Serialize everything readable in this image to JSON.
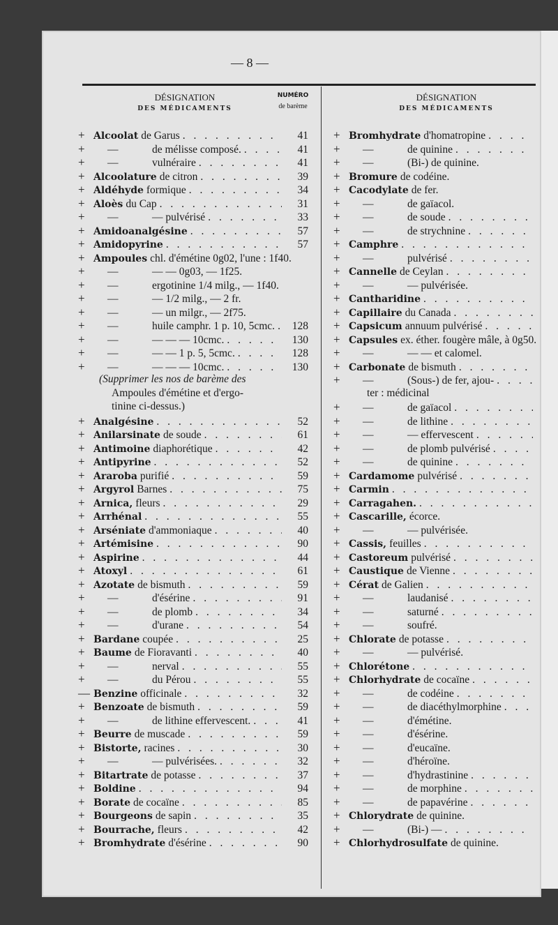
{
  "page_number": "— 8 —",
  "header": {
    "designation": "DÉSIGNATION",
    "des_medicaments": "DES MÉDICAMENTS",
    "numero": "NUMÉRO",
    "de_bareme": "de barème"
  },
  "left": [
    {
      "s": "+",
      "b": "Alcoolat",
      "t": "de Garus",
      "n": "41"
    },
    {
      "s": "+",
      "d": "—",
      "t": "de mélisse composé.",
      "n": "41"
    },
    {
      "s": "+",
      "d": "—",
      "t": "vulnéraire",
      "n": "41"
    },
    {
      "s": "+",
      "b": "Alcoolature",
      "t": "de citron",
      "n": "39"
    },
    {
      "s": "+",
      "b": "Aldéhyde",
      "t": "formique",
      "n": "34"
    },
    {
      "s": "+",
      "b": "Aloès",
      "t": "du Cap",
      "n": "31"
    },
    {
      "s": "+",
      "d": "—",
      "t": "— pulvérisé",
      "n": "33"
    },
    {
      "s": "+",
      "b": "Amidoanalgésine",
      "t": "",
      "n": "57"
    },
    {
      "s": "+",
      "b": "Amidopyrine",
      "t": "",
      "n": "57"
    },
    {
      "s": "+",
      "b": "Ampoules",
      "t": "chl. d'émétine 0g02, l'une : 1f40.",
      "n": ""
    },
    {
      "s": "+",
      "d": "—",
      "t": "— — 0g03, — 1f25.",
      "n": ""
    },
    {
      "s": "+",
      "d": "—",
      "t": "ergotinine 1/4 milg., — 1f40.",
      "n": ""
    },
    {
      "s": "+",
      "d": "—",
      "t": "— 1/2 milg., — 2 fr.",
      "n": ""
    },
    {
      "s": "+",
      "d": "—",
      "t": "— un milgr., — 2f75.",
      "n": ""
    },
    {
      "s": "+",
      "d": "—",
      "t": "huile camphr. 1 p. 10, 5cmc.",
      "n": "128"
    },
    {
      "s": "+",
      "d": "—",
      "t": "— — — 10cmc.",
      "n": "130"
    },
    {
      "s": "+",
      "d": "—",
      "t": "— — 1 p. 5, 5cmc.",
      "n": "128"
    },
    {
      "s": "+",
      "d": "—",
      "t": "— — — 10cmc.",
      "n": "130"
    },
    {
      "note": "(Supprimer les nos de barème des"
    },
    {
      "nt": "Ampoules d'émétine et d'ergo-"
    },
    {
      "nt": "tinine ci-dessus.)"
    },
    {
      "s": "+",
      "b": "Analgésine",
      "t": "",
      "n": "52"
    },
    {
      "s": "+",
      "b": "Anilarsinate",
      "t": "de soude",
      "n": "61"
    },
    {
      "s": "+",
      "b": "Antimoine",
      "t": "diaphorétique",
      "n": "42"
    },
    {
      "s": "+",
      "b": "Antipyrine",
      "t": "",
      "n": "52"
    },
    {
      "s": "+",
      "b": "Araroba",
      "t": "purifié",
      "n": "59"
    },
    {
      "s": "+",
      "b": "Argyrol",
      "t": "Barnes",
      "n": "75"
    },
    {
      "s": "+",
      "b": "Arnica,",
      "t": "fleurs",
      "n": "29"
    },
    {
      "s": "+",
      "b": "Arrhénal",
      "t": "",
      "n": "55"
    },
    {
      "s": "+",
      "b": "Arséniate",
      "t": "d'ammoniaque",
      "n": "40"
    },
    {
      "s": "+",
      "b": "Artémisine",
      "t": "",
      "n": "90"
    },
    {
      "s": "+",
      "b": "Aspirine",
      "t": "",
      "n": "44"
    },
    {
      "s": "+",
      "b": "Atoxyl",
      "t": "",
      "n": "61"
    },
    {
      "s": "+",
      "b": "Azotate",
      "t": "de bismuth",
      "n": "59"
    },
    {
      "s": "+",
      "d": "—",
      "t": "d'ésérine",
      "n": "91"
    },
    {
      "s": "+",
      "d": "—",
      "t": "de plomb",
      "n": "34"
    },
    {
      "s": "+",
      "d": "—",
      "t": "d'urane",
      "n": "54"
    },
    {
      "s": "+",
      "b": "Bardane",
      "t": "coupée",
      "n": "25"
    },
    {
      "s": "+",
      "b": "Baume",
      "t": "de Fioravanti",
      "n": "40"
    },
    {
      "s": "+",
      "d": "—",
      "t": "nerval",
      "n": "55"
    },
    {
      "s": "+",
      "d": "—",
      "t": "du Pérou",
      "n": "55"
    },
    {
      "s": "—",
      "b": "Benzine",
      "t": "officinale",
      "n": "32"
    },
    {
      "s": "+",
      "b": "Benzoate",
      "t": "de bismuth",
      "n": "59"
    },
    {
      "s": "+",
      "d": "—",
      "t": "de lithine effervescent.",
      "n": "41"
    },
    {
      "s": "+",
      "b": "Beurre",
      "t": "de muscade",
      "n": "59"
    },
    {
      "s": "+",
      "b": "Bistorte,",
      "t": "racines",
      "n": "30"
    },
    {
      "s": "+",
      "d": "—",
      "t": "— pulvérisées.",
      "n": "32"
    },
    {
      "s": "+",
      "b": "Bitartrate",
      "t": "de potasse",
      "n": "37"
    },
    {
      "s": "+",
      "b": "Boldine",
      "t": "",
      "n": "94"
    },
    {
      "s": "+",
      "b": "Borate",
      "t": "de cocaïne",
      "n": "85"
    },
    {
      "s": "+",
      "b": "Bourgeons",
      "t": "de sapin",
      "n": "35"
    },
    {
      "s": "+",
      "b": "Bourrache,",
      "t": "fleurs",
      "n": "42"
    },
    {
      "s": "+",
      "b": "Bromhydrate",
      "t": "d'ésérine",
      "n": "90"
    }
  ],
  "right": [
    {
      "s": "+",
      "b": "Bromhydrate",
      "t": "d'homatropine"
    },
    {
      "s": "+",
      "d": "—",
      "t": "de quinine"
    },
    {
      "s": "+",
      "d": "—",
      "t": "(Bi-) de quinine."
    },
    {
      "s": "+",
      "b": "Bromure",
      "t": "de codéine."
    },
    {
      "s": "+",
      "b": "Cacodylate",
      "t": "de fer."
    },
    {
      "s": "+",
      "d": "—",
      "t": "de gaïacol."
    },
    {
      "s": "+",
      "d": "—",
      "t": "de soude"
    },
    {
      "s": "+",
      "d": "—",
      "t": "de strychnine"
    },
    {
      "s": "+",
      "b": "Camphre",
      "t": ""
    },
    {
      "s": "+",
      "d": "—",
      "t": "pulvérisé"
    },
    {
      "s": "+",
      "b": "Cannelle",
      "t": "de Ceylan"
    },
    {
      "s": "+",
      "d": "—",
      "t": "— pulvérisée."
    },
    {
      "s": "+",
      "b": "Cantharidine",
      "t": ""
    },
    {
      "s": "+",
      "b": "Capillaire",
      "t": "du Canada"
    },
    {
      "s": "+",
      "b": "Capsicum",
      "t": "annuum pulvérisé"
    },
    {
      "s": "+",
      "b": "Capsules",
      "t": "ex. éther. fougère mâle, à 0g50."
    },
    {
      "s": "+",
      "d": "—",
      "t": "— — et calomel."
    },
    {
      "s": "+",
      "b": "Carbonate",
      "t": "de bismuth"
    },
    {
      "s": "+",
      "d": "—",
      "t": "(Sous-) de fer, ajou-"
    },
    {
      "nt": "ter : médicinal"
    },
    {
      "s": "+",
      "d": "—",
      "t": "de gaïacol"
    },
    {
      "s": "+",
      "d": "—",
      "t": "de lithine"
    },
    {
      "s": "+",
      "d": "—",
      "t": "— effervescent"
    },
    {
      "s": "+",
      "d": "—",
      "t": "de plomb pulvérisé"
    },
    {
      "s": "+",
      "d": "—",
      "t": "de quinine"
    },
    {
      "s": "+",
      "b": "Cardamome",
      "t": "pulvérisé"
    },
    {
      "s": "+",
      "b": "Carmin",
      "t": ""
    },
    {
      "s": "+",
      "b": "Carragahen.",
      "t": ""
    },
    {
      "s": "+",
      "b": "Cascarille,",
      "t": "écorce."
    },
    {
      "s": "+",
      "d": "—",
      "t": "— pulvérisée."
    },
    {
      "s": "+",
      "b": "Cassis,",
      "t": "feuilles"
    },
    {
      "s": "+",
      "b": "Castoreum",
      "t": "pulvérisé"
    },
    {
      "s": "+",
      "b": "Caustique",
      "t": "de Vienne"
    },
    {
      "s": "+",
      "b": "Cérat",
      "t": "de Galien"
    },
    {
      "s": "+",
      "d": "—",
      "t": "laudanisé"
    },
    {
      "s": "+",
      "d": "—",
      "t": "saturné"
    },
    {
      "s": "+",
      "d": "—",
      "t": "soufré."
    },
    {
      "s": "+",
      "b": "Chlorate",
      "t": "de potasse"
    },
    {
      "s": "+",
      "d": "—",
      "t": "— pulvérisé."
    },
    {
      "s": "+",
      "b": "Chlorétone",
      "t": ""
    },
    {
      "s": "+",
      "b": "Chlorhydrate",
      "t": "de cocaïne"
    },
    {
      "s": "+",
      "d": "—",
      "t": "de codéine"
    },
    {
      "s": "+",
      "d": "—",
      "t": "de diacéthylmorphine"
    },
    {
      "s": "+",
      "d": "—",
      "t": "d'émétine."
    },
    {
      "s": "+",
      "d": "—",
      "t": "d'ésérine."
    },
    {
      "s": "+",
      "d": "—",
      "t": "d'eucaïne."
    },
    {
      "s": "+",
      "d": "—",
      "t": "d'héroïne."
    },
    {
      "s": "+",
      "d": "—",
      "t": "d'hydrastinine"
    },
    {
      "s": "+",
      "d": "—",
      "t": "de morphine"
    },
    {
      "s": "+",
      "d": "—",
      "t": "de papavérine"
    },
    {
      "s": "+",
      "b": "Chlorydrate",
      "t": "de quinine."
    },
    {
      "s": "+",
      "d": "—",
      "t": "(Bi-) —"
    },
    {
      "s": "+",
      "b": "Chlorhydrosulfate",
      "t": "de quinine."
    }
  ]
}
